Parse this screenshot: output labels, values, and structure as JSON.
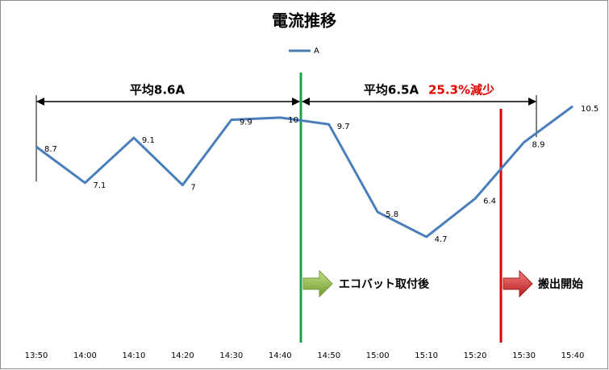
{
  "chart_data": {
    "type": "line",
    "title": "電流推移",
    "categories": [
      "13:50",
      "14:00",
      "14:10",
      "14:20",
      "14:30",
      "14:40",
      "14:50",
      "15:00",
      "15:10",
      "15:20",
      "15:30",
      "15:40"
    ],
    "series": [
      {
        "name": "A",
        "color": "#4a7ebb",
        "values": [
          8.7,
          7.1,
          9.1,
          7,
          9.9,
          10,
          9.7,
          5.8,
          4.7,
          6.4,
          8.9,
          10.5
        ]
      }
    ],
    "ylim": [
      0,
      12
    ],
    "annotations": {
      "before_avg": "平均8.6A",
      "after_avg": "平均6.5A",
      "reduction": "25.3%減少",
      "install": "エコバット取付後",
      "removal": "搬出開始"
    }
  }
}
